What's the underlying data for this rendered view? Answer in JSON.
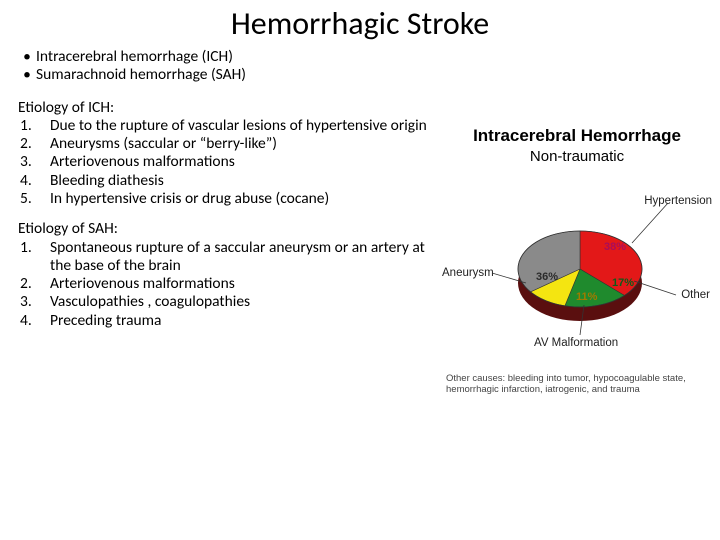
{
  "title": "Hemorrhagic Stroke",
  "bullets": [
    "Intracerebral hemorrhage (ICH)",
    "Sumarachnoid hemorrhage (SAH)"
  ],
  "ich": {
    "heading": "Etiology of ICH:",
    "items": [
      "Due to the rupture of vascular lesions of hypertensive origin",
      "Aneurysms (saccular or “berry-like”)",
      "Arteriovenous malformations",
      "Bleeding diathesis",
      "In hypertensive crisis or drug abuse (cocane)"
    ]
  },
  "sah": {
    "heading": "Etiology of SAH:",
    "items": [
      "Spontaneous rupture of a saccular aneurysm or an artery at the base of the brain",
      "Arteriovenous malformations",
      "Vasculopathies , coagulopathies",
      "Preceding trauma"
    ]
  },
  "chart": {
    "title": "Intracerebral Hemorrhage",
    "subtitle": "Non-traumatic",
    "type": "pie",
    "background_color": "#ffffff",
    "label_fontsize": 11.5,
    "pct_fontsize": 11,
    "slices": [
      {
        "label": "Hypertension",
        "value": 38,
        "color": "#e31818",
        "pct_color": "#aa0d5a"
      },
      {
        "label": "Other",
        "value": 17,
        "color": "#1f8a2d",
        "pct_color": "#0e5c18"
      },
      {
        "label": "AV Malformation",
        "value": 11,
        "color": "#f4e511",
        "pct_color": "#a07a00"
      },
      {
        "label": "Aneurysm",
        "value": 36,
        "color": "#8a8a8a",
        "pct_color": "#2b2b2b"
      }
    ],
    "depth_color": "#5a0f0f",
    "caption": "Other causes:  bleeding into tumor, hypocoagulable state, hemorrhagic infarction, iatrogenic, and trauma"
  }
}
